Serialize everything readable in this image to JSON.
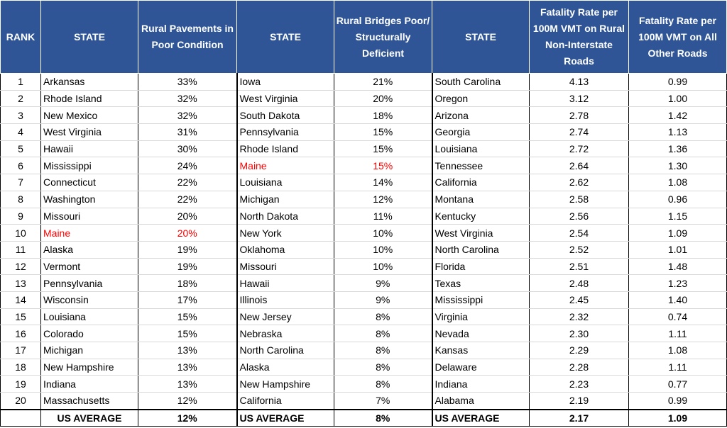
{
  "headers": {
    "rank": "RANK",
    "state1": "STATE",
    "pavement": "Rural Pavements in Poor Condition",
    "state2": "STATE",
    "bridges": "Rural Bridges Poor/ Structurally Deficient",
    "state3": "STATE",
    "fatal_rural": "Fatality Rate per 100M VMT on Rural Non-Interstate Roads",
    "fatal_other": "Fatality Rate per 100M VMT on All Other Roads"
  },
  "highlight_color": "#ff0000",
  "header_bg": "#2f5597",
  "rows": [
    {
      "rank": "1",
      "s1": "Arkansas",
      "pav": "33%",
      "s2": "Iowa",
      "br": "21%",
      "s3": "South Carolina",
      "fr": "4.13",
      "fo": "0.99"
    },
    {
      "rank": "2",
      "s1": "Rhode Island",
      "pav": "32%",
      "s2": "West Virginia",
      "br": "20%",
      "s3": "Oregon",
      "fr": "3.12",
      "fo": "1.00"
    },
    {
      "rank": "3",
      "s1": "New Mexico",
      "pav": "32%",
      "s2": "South Dakota",
      "br": "18%",
      "s3": "Arizona",
      "fr": "2.78",
      "fo": "1.42"
    },
    {
      "rank": "4",
      "s1": "West Virginia",
      "pav": "31%",
      "s2": "Pennsylvania",
      "br": "15%",
      "s3": "Georgia",
      "fr": "2.74",
      "fo": "1.13"
    },
    {
      "rank": "5",
      "s1": "Hawaii",
      "pav": "30%",
      "s2": "Rhode Island",
      "br": "15%",
      "s3": "Louisiana",
      "fr": "2.72",
      "fo": "1.36"
    },
    {
      "rank": "6",
      "s1": "Mississippi",
      "pav": "24%",
      "s2": "Maine",
      "br": "15%",
      "s3": "Tennessee",
      "fr": "2.64",
      "fo": "1.30",
      "hl2": true
    },
    {
      "rank": "7",
      "s1": "Connecticut",
      "pav": "22%",
      "s2": "Louisiana",
      "br": "14%",
      "s3": "California",
      "fr": "2.62",
      "fo": "1.08"
    },
    {
      "rank": "8",
      "s1": "Washington",
      "pav": "22%",
      "s2": "Michigan",
      "br": "12%",
      "s3": "Montana",
      "fr": "2.58",
      "fo": "0.96"
    },
    {
      "rank": "9",
      "s1": "Missouri",
      "pav": "20%",
      "s2": "North Dakota",
      "br": "11%",
      "s3": "Kentucky",
      "fr": "2.56",
      "fo": "1.15"
    },
    {
      "rank": "10",
      "s1": "Maine",
      "pav": "20%",
      "s2": "New York",
      "br": "10%",
      "s3": "West Virginia",
      "fr": "2.54",
      "fo": "1.09",
      "hl1": true
    },
    {
      "rank": "11",
      "s1": "Alaska",
      "pav": "19%",
      "s2": "Oklahoma",
      "br": "10%",
      "s3": "North Carolina",
      "fr": "2.52",
      "fo": "1.01"
    },
    {
      "rank": "12",
      "s1": "Vermont",
      "pav": "19%",
      "s2": "Missouri",
      "br": "10%",
      "s3": "Florida",
      "fr": "2.51",
      "fo": "1.48"
    },
    {
      "rank": "13",
      "s1": "Pennsylvania",
      "pav": "18%",
      "s2": "Hawaii",
      "br": "9%",
      "s3": "Texas",
      "fr": "2.48",
      "fo": "1.23"
    },
    {
      "rank": "14",
      "s1": "Wisconsin",
      "pav": "17%",
      "s2": "Illinois",
      "br": "9%",
      "s3": "Mississippi",
      "fr": "2.45",
      "fo": "1.40"
    },
    {
      "rank": "15",
      "s1": "Louisiana",
      "pav": "15%",
      "s2": "New Jersey",
      "br": "8%",
      "s3": "Virginia",
      "fr": "2.32",
      "fo": "0.74"
    },
    {
      "rank": "16",
      "s1": "Colorado",
      "pav": "15%",
      "s2": "Nebraska",
      "br": "8%",
      "s3": "Nevada",
      "fr": "2.30",
      "fo": "1.11"
    },
    {
      "rank": "17",
      "s1": "Michigan",
      "pav": "13%",
      "s2": "North Carolina",
      "br": "8%",
      "s3": "Kansas",
      "fr": "2.29",
      "fo": "1.08"
    },
    {
      "rank": "18",
      "s1": "New Hampshire",
      "pav": "13%",
      "s2": "Alaska",
      "br": "8%",
      "s3": "Delaware",
      "fr": "2.28",
      "fo": "1.11"
    },
    {
      "rank": "19",
      "s1": "Indiana",
      "pav": "13%",
      "s2": "New Hampshire",
      "br": "8%",
      "s3": "Indiana",
      "fr": "2.23",
      "fo": "0.77"
    },
    {
      "rank": "20",
      "s1": "Massachusetts",
      "pav": "12%",
      "s2": "California",
      "br": "7%",
      "s3": "Alabama",
      "fr": "2.19",
      "fo": "0.99"
    }
  ],
  "average": {
    "label1": "US AVERAGE",
    "pav": "12%",
    "label2": "US AVERAGE",
    "br": "8%",
    "label3": "US AVERAGE",
    "fr": "2.17",
    "fo": "1.09"
  }
}
